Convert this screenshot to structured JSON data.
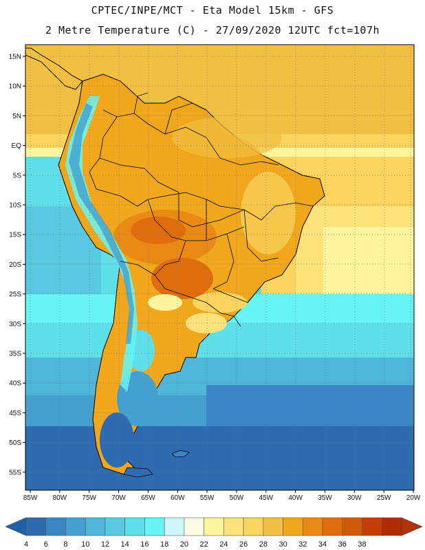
{
  "title_line1": "CPTEC/INPE/MCT  -   Eta Model 15km  -  GFS",
  "title_line2": "2 Metre Temperature (C) - 27/09/2020 12UTC fct=107h",
  "lat_labels": [
    "15N",
    "10N",
    "5N",
    "EQ",
    "5S",
    "10S",
    "15S",
    "20S",
    "25S",
    "30S",
    "35S",
    "40S",
    "45S",
    "50S",
    "55S"
  ],
  "lon_labels": [
    "85W",
    "80W",
    "75W",
    "70W",
    "65W",
    "60W",
    "55W",
    "50W",
    "45W",
    "40W",
    "35W",
    "30W",
    "25W",
    "20W"
  ],
  "colorbar": {
    "labels": [
      "4",
      "6",
      "8",
      "10",
      "12",
      "14",
      "16",
      "18",
      "20",
      "22",
      "24",
      "26",
      "28",
      "30",
      "32",
      "34",
      "36",
      "38"
    ],
    "colors": [
      "#2f6bb0",
      "#3a85c4",
      "#44a0cf",
      "#4fb6d9",
      "#58cbe2",
      "#5fdfea",
      "#66f4f4",
      "#cdf6fb",
      "#fffbe4",
      "#fff59c",
      "#fde27a",
      "#f9d45f",
      "#f1bf42",
      "#f0a71c",
      "#e88a14",
      "#e06d0c",
      "#d05a08",
      "#c43d03",
      "#b22a00"
    ],
    "left_arrow_color": "#2160a8",
    "right_arrow_color": "#b3330a"
  }
}
